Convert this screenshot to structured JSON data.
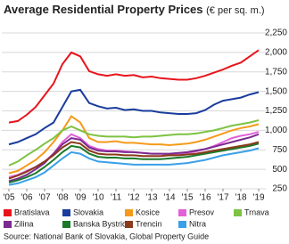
{
  "chart_data": {
    "type": "line",
    "title": "Average Residential Property Prices",
    "subtitle": "(€ per sq. m.)",
    "source": "Source: National Bank of Slovakia, Global Property Guide",
    "x": [
      2005,
      2005.5,
      2006,
      2006.5,
      2007,
      2007.5,
      2008,
      2008.5,
      2009,
      2009.5,
      2010,
      2010.5,
      2011,
      2011.5,
      2012,
      2012.5,
      2013,
      2013.5,
      2014,
      2014.5,
      2015,
      2015.5,
      2016,
      2016.5,
      2017,
      2017.5,
      2018,
      2018.5,
      2019
    ],
    "xlim": [
      2004.9,
      2019.4
    ],
    "xticks": [
      {
        "value": 2005,
        "label": "'05"
      },
      {
        "value": 2006,
        "label": "'06"
      },
      {
        "value": 2007,
        "label": "'07"
      },
      {
        "value": 2008,
        "label": "'08"
      },
      {
        "value": 2009,
        "label": "'09"
      },
      {
        "value": 2010,
        "label": "'10"
      },
      {
        "value": 2011,
        "label": "'11"
      },
      {
        "value": 2012,
        "label": "'12"
      },
      {
        "value": 2013,
        "label": "'13"
      },
      {
        "value": 2014,
        "label": "'14"
      },
      {
        "value": 2015,
        "label": "'15"
      },
      {
        "value": 2016,
        "label": "'16"
      },
      {
        "value": 2017,
        "label": "'17"
      },
      {
        "value": 2018,
        "label": "'18"
      },
      {
        "value": 2019,
        "label": "'19"
      }
    ],
    "ylim": [
      250,
      2250
    ],
    "yticks": [
      250,
      500,
      750,
      {
        "value": 1000,
        "label": "1,000"
      },
      {
        "value": 1250,
        "label": "1,250"
      },
      {
        "value": 1500,
        "label": "1,500"
      },
      {
        "value": 1750,
        "label": "1,750"
      },
      {
        "value": 2000,
        "label": "2,000"
      },
      {
        "value": 2250,
        "label": "2,250"
      }
    ],
    "grid": true,
    "series": [
      {
        "name": "Bratislava",
        "color": "#e8141c",
        "values": [
          1100,
          1120,
          1200,
          1300,
          1450,
          1600,
          1850,
          2000,
          1950,
          1760,
          1720,
          1700,
          1720,
          1700,
          1710,
          1680,
          1690,
          1670,
          1660,
          1650,
          1650,
          1670,
          1700,
          1740,
          1780,
          1830,
          1870,
          1950,
          2030
        ]
      },
      {
        "name": "Slovakia",
        "color": "#1a3c9c",
        "values": [
          820,
          850,
          900,
          950,
          1030,
          1100,
          1300,
          1500,
          1520,
          1350,
          1310,
          1280,
          1290,
          1260,
          1270,
          1250,
          1250,
          1230,
          1220,
          1210,
          1210,
          1220,
          1260,
          1330,
          1380,
          1400,
          1420,
          1460,
          1490
        ]
      },
      {
        "name": "Kosice",
        "color": "#f59a1b",
        "values": [
          450,
          480,
          550,
          620,
          720,
          850,
          1000,
          1180,
          1100,
          900,
          850,
          850,
          860,
          840,
          840,
          830,
          820,
          820,
          810,
          820,
          830,
          850,
          880,
          920,
          960,
          1000,
          1030,
          1050,
          1080
        ]
      },
      {
        "name": "Presov",
        "color": "#e35fd8",
        "values": [
          400,
          430,
          480,
          530,
          600,
          700,
          850,
          950,
          900,
          800,
          760,
          740,
          740,
          730,
          720,
          710,
          700,
          700,
          690,
          700,
          710,
          730,
          760,
          800,
          850,
          900,
          930,
          950,
          980
        ]
      },
      {
        "name": "Trnava",
        "color": "#7dc242",
        "values": [
          550,
          600,
          680,
          750,
          830,
          900,
          1000,
          1050,
          1000,
          950,
          930,
          920,
          920,
          920,
          910,
          920,
          920,
          930,
          940,
          950,
          950,
          960,
          980,
          1000,
          1030,
          1060,
          1080,
          1100,
          1130
        ]
      },
      {
        "name": "Zilina",
        "color": "#7b2b8f",
        "values": [
          350,
          380,
          430,
          500,
          580,
          700,
          820,
          900,
          880,
          780,
          740,
          730,
          730,
          720,
          720,
          710,
          700,
          700,
          700,
          710,
          720,
          740,
          760,
          790,
          820,
          850,
          880,
          910,
          950
        ]
      },
      {
        "name": "Banska Bystrica",
        "color": "#1a7a2a",
        "values": [
          330,
          360,
          400,
          450,
          530,
          620,
          720,
          800,
          780,
          700,
          660,
          650,
          650,
          640,
          640,
          630,
          630,
          630,
          640,
          650,
          660,
          680,
          700,
          720,
          740,
          760,
          780,
          800,
          830
        ]
      },
      {
        "name": "Trencin",
        "color": "#8b3a1a",
        "values": [
          380,
          420,
          470,
          530,
          600,
          680,
          780,
          850,
          830,
          740,
          700,
          690,
          690,
          680,
          680,
          670,
          670,
          670,
          680,
          680,
          690,
          700,
          720,
          740,
          760,
          780,
          800,
          820,
          850
        ]
      },
      {
        "name": "Nitra",
        "color": "#3aa0e8",
        "values": [
          300,
          320,
          360,
          400,
          460,
          550,
          640,
          720,
          700,
          640,
          600,
          590,
          580,
          570,
          560,
          560,
          560,
          560,
          560,
          570,
          580,
          600,
          620,
          650,
          680,
          700,
          720,
          740,
          770
        ]
      }
    ]
  }
}
